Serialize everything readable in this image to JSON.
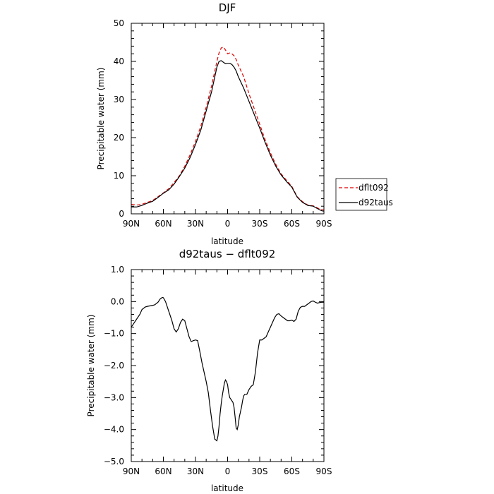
{
  "chart_data": [
    {
      "type": "line",
      "title": "DJF",
      "xlabel": "latitude",
      "ylabel": "Precipitable water (mm)",
      "xlim": [
        90,
        -90
      ],
      "ylim": [
        0,
        50
      ],
      "xticks": [
        90,
        60,
        30,
        0,
        -30,
        -60,
        -90
      ],
      "xtick_labels": [
        "90N",
        "60N",
        "30N",
        "0",
        "30S",
        "60S",
        "90S"
      ],
      "yticks": [
        0,
        10,
        20,
        30,
        40,
        50
      ],
      "ytick_labels": [
        "0",
        "10",
        "20",
        "30",
        "40",
        "50"
      ],
      "legend_position": "outside-right",
      "series": [
        {
          "name": "dflt092",
          "color": "#e00000",
          "dash": "dashed",
          "x": [
            90,
            85,
            80,
            75,
            70,
            65,
            60,
            55,
            50,
            45,
            40,
            35,
            30,
            25,
            20,
            15,
            10,
            8,
            6,
            4,
            2,
            0,
            -2,
            -4,
            -6,
            -8,
            -10,
            -15,
            -20,
            -25,
            -30,
            -35,
            -40,
            -45,
            -50,
            -55,
            -60,
            -65,
            -70,
            -75,
            -80,
            -85,
            -88,
            -90
          ],
          "y": [
            2.5,
            2.3,
            2.5,
            3.0,
            3.5,
            4.5,
            5.5,
            6.6,
            8.2,
            10.0,
            12.5,
            15.5,
            19.0,
            23.0,
            28.0,
            33.5,
            40.0,
            42.2,
            43.5,
            43.8,
            43.0,
            42.0,
            42.2,
            42.0,
            41.5,
            40.5,
            39.0,
            36.0,
            31.5,
            27.5,
            23.5,
            19.5,
            16.0,
            13.0,
            10.5,
            8.8,
            7.2,
            4.5,
            3.2,
            2.3,
            2.1,
            1.4,
            1.1,
            1.0
          ]
        },
        {
          "name": "d92taus",
          "color": "#000000",
          "dash": "solid",
          "x": [
            90,
            85,
            80,
            75,
            70,
            65,
            60,
            55,
            50,
            45,
            40,
            35,
            30,
            25,
            20,
            15,
            10,
            8,
            6,
            4,
            2,
            0,
            -2,
            -4,
            -6,
            -8,
            -10,
            -15,
            -20,
            -25,
            -30,
            -35,
            -40,
            -45,
            -50,
            -55,
            -60,
            -65,
            -70,
            -75,
            -80,
            -85,
            -88,
            -90
          ],
          "y": [
            1.8,
            1.8,
            2.2,
            2.8,
            3.3,
            4.3,
            5.4,
            6.3,
            7.8,
            9.8,
            12.0,
            14.8,
            18.2,
            22.0,
            27.0,
            32.0,
            38.5,
            40.0,
            40.2,
            39.8,
            39.4,
            39.5,
            39.5,
            39.2,
            38.5,
            37.5,
            36.0,
            33.0,
            29.5,
            26.0,
            22.5,
            18.8,
            15.4,
            12.5,
            10.2,
            8.5,
            7.0,
            4.4,
            3.0,
            2.2,
            2.0,
            1.2,
            0.8,
            0.7
          ]
        }
      ]
    },
    {
      "type": "line",
      "title": "d92taus − dflt092",
      "xlabel": "latitude",
      "ylabel": "Precipitable water (mm)",
      "xlim": [
        90,
        -90
      ],
      "ylim": [
        -5,
        1
      ],
      "xticks": [
        90,
        60,
        30,
        0,
        -30,
        -60,
        -90
      ],
      "xtick_labels": [
        "90N",
        "60N",
        "30N",
        "0",
        "30S",
        "60S",
        "90S"
      ],
      "yticks": [
        1,
        0,
        -1,
        -2,
        -3,
        -4,
        -5
      ],
      "ytick_labels": [
        "1.0",
        "0.0",
        "−1.0",
        "−2.0",
        "−3.0",
        "−4.0",
        "−5.0"
      ],
      "series": [
        {
          "color": "#000000",
          "dash": "solid",
          "x": [
            90,
            88,
            85,
            82,
            80,
            77,
            75,
            72,
            70,
            68,
            65,
            63,
            61,
            60,
            58,
            56,
            54,
            52,
            50,
            48,
            46,
            44,
            42,
            40,
            38,
            36,
            34,
            32,
            30,
            28,
            26,
            24,
            22,
            20,
            18,
            16,
            14,
            12,
            10,
            9,
            8,
            7,
            6,
            5,
            4,
            3,
            2,
            1,
            0,
            -1,
            -2,
            -3,
            -4,
            -5,
            -6,
            -7,
            -8,
            -9,
            -10,
            -11,
            -12,
            -13,
            -14,
            -15,
            -16,
            -18,
            -20,
            -22,
            -24,
            -26,
            -28,
            -30,
            -32,
            -34,
            -36,
            -38,
            -40,
            -42,
            -44,
            -46,
            -48,
            -50,
            -52,
            -54,
            -56,
            -58,
            -60,
            -62,
            -64,
            -66,
            -68,
            -70,
            -72,
            -74,
            -76,
            -78,
            -80,
            -82,
            -84,
            -86,
            -88,
            -90
          ],
          "y": [
            -0.8,
            -0.7,
            -0.55,
            -0.4,
            -0.25,
            -0.17,
            -0.15,
            -0.13,
            -0.12,
            -0.1,
            -0.02,
            0.08,
            0.13,
            0.12,
            0.0,
            -0.2,
            -0.4,
            -0.6,
            -0.85,
            -0.95,
            -0.85,
            -0.65,
            -0.55,
            -0.6,
            -0.85,
            -1.1,
            -1.25,
            -1.22,
            -1.2,
            -1.22,
            -1.55,
            -1.9,
            -2.2,
            -2.5,
            -2.85,
            -3.4,
            -3.9,
            -4.3,
            -4.35,
            -4.2,
            -3.9,
            -3.5,
            -3.2,
            -2.95,
            -2.75,
            -2.55,
            -2.45,
            -2.5,
            -2.6,
            -2.85,
            -3.0,
            -3.05,
            -3.1,
            -3.15,
            -3.3,
            -3.6,
            -3.95,
            -4.0,
            -3.85,
            -3.6,
            -3.45,
            -3.3,
            -3.1,
            -2.95,
            -2.9,
            -2.9,
            -2.75,
            -2.65,
            -2.6,
            -2.2,
            -1.6,
            -1.2,
            -1.2,
            -1.15,
            -1.1,
            -0.95,
            -0.8,
            -0.65,
            -0.5,
            -0.4,
            -0.38,
            -0.45,
            -0.5,
            -0.55,
            -0.6,
            -0.6,
            -0.58,
            -0.62,
            -0.55,
            -0.3,
            -0.18,
            -0.15,
            -0.15,
            -0.1,
            -0.05,
            0.0,
            0.02,
            -0.02,
            -0.05,
            -0.03,
            -0.02,
            -0.02
          ]
        }
      ]
    }
  ]
}
